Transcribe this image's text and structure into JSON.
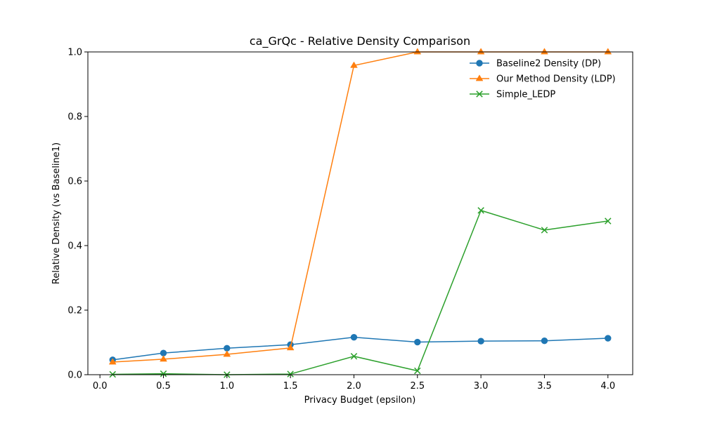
{
  "chart_data": {
    "type": "line",
    "title": "ca_GrQc - Relative Density Comparison",
    "xlabel": "Privacy Budget (epsilon)",
    "ylabel": "Relative Density (vs Baseline1)",
    "x": [
      0.1,
      0.5,
      1.0,
      1.5,
      2.0,
      2.5,
      3.0,
      3.5,
      4.0
    ],
    "xlim": [
      -0.095,
      4.195
    ],
    "ylim": [
      0,
      1.0
    ],
    "xticks": [
      "0.0",
      "0.5",
      "1.0",
      "1.5",
      "2.0",
      "2.5",
      "3.0",
      "3.5",
      "4.0"
    ],
    "yticks": [
      "0.0",
      "0.2",
      "0.4",
      "0.6",
      "0.8",
      "1.0"
    ],
    "grid": false,
    "legend_position": "top-right",
    "series": [
      {
        "name": "Baseline2 Density (DP)",
        "color": "#1f77b4",
        "marker": "circle",
        "values": [
          0.046,
          0.067,
          0.082,
          0.093,
          0.116,
          0.101,
          0.104,
          0.105,
          0.113
        ]
      },
      {
        "name": "Our Method Density (LDP)",
        "color": "#ff7f0e",
        "marker": "triangle",
        "values": [
          0.039,
          0.048,
          0.063,
          0.083,
          0.958,
          1.0,
          1.0,
          1.0,
          1.0
        ]
      },
      {
        "name": "Simple_LEDP",
        "color": "#2ca02c",
        "marker": "x",
        "values": [
          0.001,
          0.003,
          0.0,
          0.002,
          0.057,
          0.012,
          0.509,
          0.448,
          0.476
        ]
      }
    ]
  }
}
